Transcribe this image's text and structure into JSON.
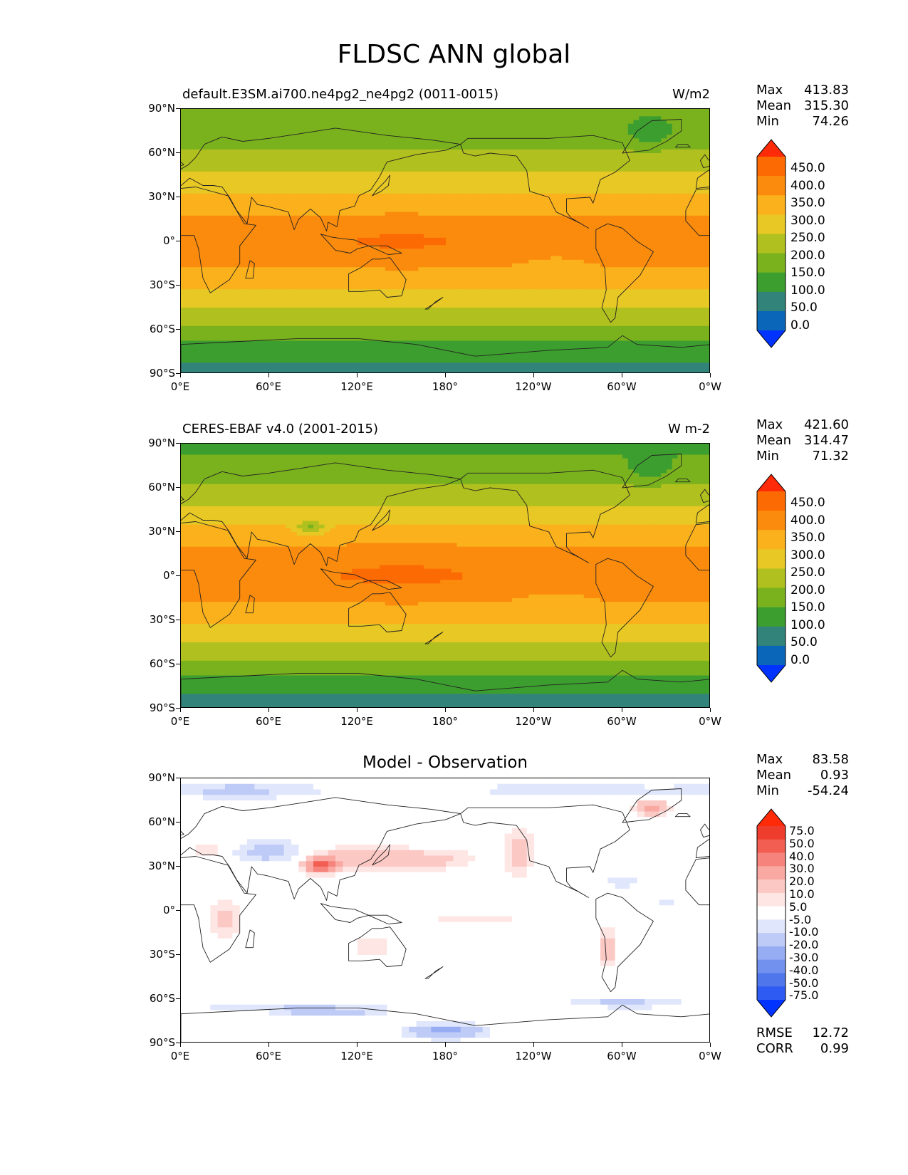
{
  "figure_title": "FLDSC ANN global",
  "axes": {
    "yticks": [
      "90°N",
      "60°N",
      "30°N",
      "0°",
      "30°S",
      "60°S",
      "90°S"
    ],
    "xticks": [
      "0°E",
      "60°E",
      "120°E",
      "180°",
      "120°W",
      "60°W",
      "0°W"
    ]
  },
  "panels": [
    {
      "left_title": "default.E3SM.ai700.ne4pg2_ne4pg2 (0011-0015)",
      "right_title": "W/m2",
      "stats": {
        "max_label": "Max",
        "max": "413.83",
        "mean_label": "Mean",
        "mean": "315.30",
        "min_label": "Min",
        "min": "74.26"
      },
      "colorbar": [
        "450.0",
        "400.0",
        "350.0",
        "300.0",
        "250.0",
        "200.0",
        "150.0",
        "100.0",
        "50.0",
        "0.0"
      ]
    },
    {
      "left_title": "CERES-EBAF v4.0 (2001-2015)",
      "right_title": "W m-2",
      "stats": {
        "max_label": "Max",
        "max": "421.60",
        "mean_label": "Mean",
        "mean": "314.47",
        "min_label": "Min",
        "min": "71.32"
      },
      "colorbar": [
        "450.0",
        "400.0",
        "350.0",
        "300.0",
        "250.0",
        "200.0",
        "150.0",
        "100.0",
        "50.0",
        "0.0"
      ]
    },
    {
      "center_title": "Model - Observation",
      "stats": {
        "max_label": "Max",
        "max": "83.58",
        "mean_label": "Mean",
        "mean": "0.93",
        "min_label": "Min",
        "min": "-54.24"
      },
      "colorbar": [
        "75.0",
        "50.0",
        "40.0",
        "30.0",
        "20.0",
        "10.0",
        "5.0",
        "-5.0",
        "-10.0",
        "-20.0",
        "-30.0",
        "-40.0",
        "-50.0",
        "-75.0"
      ],
      "rmse_label": "RMSE",
      "rmse": "12.72",
      "corr_label": "CORR",
      "corr": "0.99"
    }
  ],
  "colors": {
    "abs_scale": [
      "#0033ff",
      "#0a66b8",
      "#32847a",
      "#3c9e2e",
      "#7ab21e",
      "#b0c01e",
      "#e7c824",
      "#fbb11c",
      "#fb8b0d",
      "#fc6a04",
      "#ff2a08"
    ],
    "diff_scale": [
      "#0033ff",
      "#2e5cf2",
      "#4f76ea",
      "#7290ee",
      "#97adf3",
      "#bfcbf7",
      "#e0e6fb",
      "#ffffff",
      "#fde6e4",
      "#fbc8c4",
      "#f9a8a2",
      "#f6847c",
      "#f25e52",
      "#ee3d2c",
      "#ff2a08"
    ]
  },
  "chart_data": [
    {
      "type": "heatmap",
      "title": "default.E3SM.ai700.ne4pg2_ne4pg2 (0011-0015)",
      "units": "W/m2",
      "levels": [
        0,
        50,
        100,
        150,
        200,
        250,
        300,
        350,
        400,
        450
      ],
      "zonal_profile": {
        "lat": [
          90,
          75,
          60,
          45,
          30,
          15,
          0,
          -15,
          -30,
          -45,
          -60,
          -75,
          -90
        ],
        "value": [
          150,
          160,
          210,
          260,
          310,
          360,
          380,
          360,
          310,
          250,
          190,
          120,
          80
        ]
      },
      "stats": {
        "max": 413.83,
        "mean": 315.3,
        "min": 74.26
      }
    },
    {
      "type": "heatmap",
      "title": "CERES-EBAF v4.0 (2001-2015)",
      "units": "W m-2",
      "levels": [
        0,
        50,
        100,
        150,
        200,
        250,
        300,
        350,
        400,
        450
      ],
      "zonal_profile": {
        "lat": [
          90,
          75,
          60,
          45,
          30,
          15,
          0,
          -15,
          -30,
          -45,
          -60,
          -75,
          -90
        ],
        "value": [
          140,
          160,
          210,
          260,
          320,
          370,
          385,
          360,
          310,
          250,
          190,
          115,
          75
        ]
      },
      "stats": {
        "max": 421.6,
        "mean": 314.47,
        "min": 71.32
      }
    },
    {
      "type": "heatmap",
      "title": "Model - Observation",
      "levels": [
        -75,
        -50,
        -40,
        -30,
        -20,
        -10,
        -5,
        5,
        10,
        20,
        30,
        40,
        50,
        75
      ],
      "stats": {
        "max": 83.58,
        "mean": 0.93,
        "min": -54.24,
        "rmse": 12.72,
        "corr": 0.99
      }
    }
  ]
}
